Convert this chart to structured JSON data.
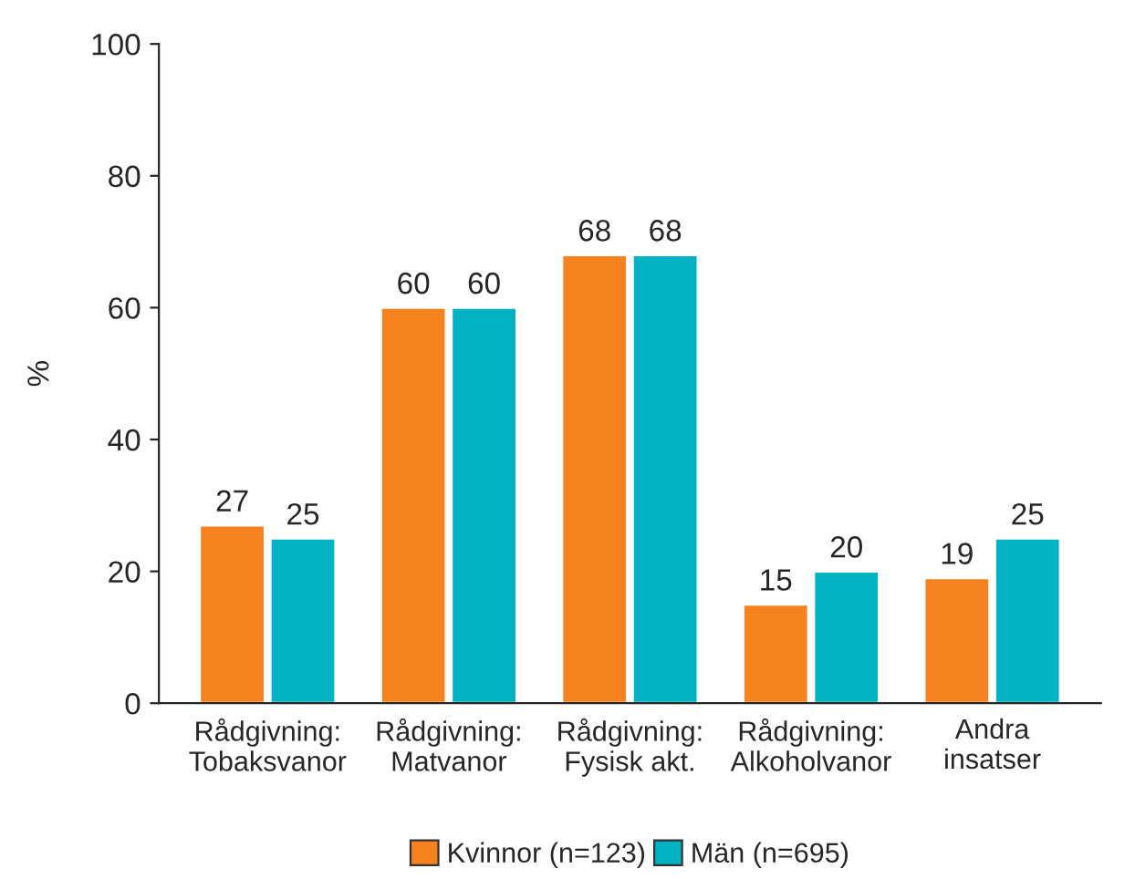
{
  "chart_data": {
    "type": "bar",
    "categories": [
      "Rådgivning:\nTobaksvanor",
      "Rådgivning:\nMatvanor",
      "Rådgivning:\nFysisk akt.",
      "Rådgivning:\nAlkoholvanor",
      "Andra\ninsatser"
    ],
    "series": [
      {
        "name": "Kvinnor (n=123)",
        "color": "#f5821f",
        "values": [
          27,
          60,
          68,
          15,
          19
        ]
      },
      {
        "name": "Män (n=695)",
        "color": "#00b2c2",
        "values": [
          25,
          60,
          68,
          20,
          25
        ]
      }
    ],
    "ylabel": "%",
    "ylim": [
      0,
      100
    ],
    "yticks": [
      0,
      20,
      40,
      60,
      80,
      100
    ],
    "data_labels": true,
    "grid": false,
    "legend": "bottom"
  }
}
